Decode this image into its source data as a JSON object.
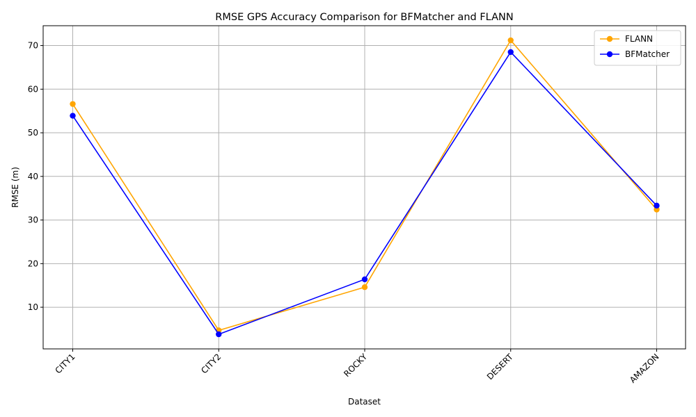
{
  "chart_data": {
    "type": "line",
    "title": "RMSE GPS Accuracy Comparison for BFMatcher and FLANN",
    "xlabel": "Dataset",
    "ylabel": "RMSE (m)",
    "categories": [
      "CITY1",
      "CITY2",
      "ROCKY",
      "DESERT",
      "AMAZON"
    ],
    "yticks": [
      10,
      20,
      30,
      40,
      50,
      60,
      70
    ],
    "ylim": [
      0.45,
      74.55
    ],
    "grid": true,
    "legend_position": "top-right",
    "x_tick_rotation": 45,
    "series": [
      {
        "name": "FLANN",
        "color": "#ffa500",
        "marker": "circle",
        "values": [
          56.6,
          4.7,
          14.6,
          71.2,
          32.4
        ]
      },
      {
        "name": "BFMatcher",
        "color": "#0000ff",
        "marker": "circle",
        "values": [
          53.9,
          3.8,
          16.4,
          68.5,
          33.3
        ]
      }
    ]
  }
}
